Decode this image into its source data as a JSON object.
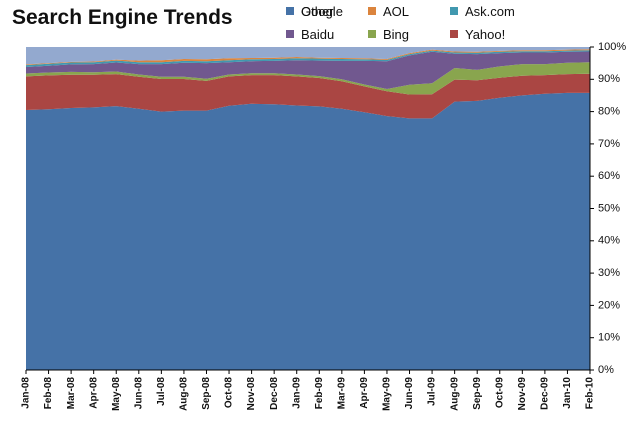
{
  "chart_data": {
    "type": "area",
    "stacked": true,
    "percent": true,
    "title": "Search Engine Trends",
    "x": [
      "Jan-08",
      "Feb-08",
      "Mar-08",
      "Apr-08",
      "May-08",
      "Jun-08",
      "Jul-08",
      "Aug-08",
      "Sep-08",
      "Oct-08",
      "Nov-08",
      "Dec-08",
      "Jan-09",
      "Feb-09",
      "Mar-09",
      "Apr-09",
      "May-09",
      "Jun-09",
      "Jul-09",
      "Aug-09",
      "Sep-09",
      "Oct-09",
      "Nov-09",
      "Dec-09",
      "Jan-10",
      "Feb-10"
    ],
    "series": [
      {
        "name": "Google",
        "color": "#4572A7",
        "values": [
          80.5,
          80.7,
          81.1,
          81.3,
          81.7,
          80.9,
          80.0,
          80.3,
          80.3,
          81.8,
          82.4,
          82.3,
          81.9,
          81.6,
          80.9,
          79.8,
          78.6,
          77.9,
          77.9,
          83.1,
          83.3,
          84.3,
          85.0,
          85.5,
          85.8,
          85.8
        ]
      },
      {
        "name": "Yahoo!",
        "color": "#AA4643",
        "values": [
          10.4,
          10.5,
          10.3,
          10.1,
          9.9,
          9.9,
          10.1,
          9.8,
          9.2,
          9.1,
          8.9,
          9.0,
          9.0,
          8.8,
          8.5,
          8.0,
          7.7,
          7.4,
          7.5,
          6.8,
          6.4,
          6.2,
          6.1,
          5.8,
          5.8,
          5.9
        ]
      },
      {
        "name": "Bing",
        "color": "#89A54E",
        "values": [
          0.9,
          0.9,
          0.9,
          0.8,
          0.8,
          0.7,
          0.7,
          0.7,
          0.7,
          0.6,
          0.6,
          0.6,
          0.6,
          0.6,
          0.6,
          0.6,
          0.7,
          3.0,
          3.4,
          3.6,
          3.2,
          3.5,
          3.6,
          3.4,
          3.5,
          3.6
        ]
      },
      {
        "name": "Baidu",
        "color": "#71588F",
        "values": [
          2.0,
          2.1,
          2.3,
          2.5,
          2.8,
          3.2,
          3.9,
          4.3,
          4.8,
          3.8,
          3.7,
          3.8,
          4.4,
          4.8,
          5.7,
          7.3,
          8.6,
          9.1,
          9.7,
          4.4,
          4.9,
          4.1,
          3.6,
          3.6,
          3.4,
          3.3
        ]
      },
      {
        "name": "Ask.com",
        "color": "#4198AF",
        "values": [
          0.6,
          0.6,
          0.6,
          0.6,
          0.6,
          0.6,
          0.6,
          0.6,
          0.6,
          0.6,
          0.6,
          0.6,
          0.6,
          0.6,
          0.6,
          0.5,
          0.4,
          0.4,
          0.4,
          0.4,
          0.4,
          0.4,
          0.4,
          0.4,
          0.4,
          0.4
        ]
      },
      {
        "name": "AOL",
        "color": "#DB843D",
        "values": [
          0.2,
          0.2,
          0.2,
          0.2,
          0.3,
          0.5,
          0.6,
          0.6,
          0.6,
          0.6,
          0.4,
          0.4,
          0.4,
          0.3,
          0.3,
          0.3,
          0.3,
          0.3,
          0.3,
          0.3,
          0.3,
          0.3,
          0.3,
          0.3,
          0.3,
          0.3
        ]
      },
      {
        "name": "Other",
        "color": "#93A9CF",
        "values": [
          5.4,
          5.0,
          4.6,
          4.5,
          3.9,
          4.2,
          4.1,
          3.7,
          3.8,
          3.5,
          3.4,
          3.3,
          3.1,
          3.3,
          3.4,
          3.5,
          3.7,
          1.9,
          0.8,
          1.4,
          1.5,
          1.2,
          1.0,
          1.0,
          0.8,
          0.7
        ]
      }
    ],
    "legend_order": [
      "Other",
      "AOL",
      "Ask.com",
      "Baidu",
      "Bing",
      "Yahoo!",
      "Google"
    ],
    "yticks": [
      "0%",
      "10%",
      "20%",
      "30%",
      "40%",
      "50%",
      "60%",
      "70%",
      "80%",
      "90%",
      "100%"
    ],
    "ylim": [
      0,
      100
    ],
    "grid": false,
    "legend_position": "top-right",
    "xlabel": "",
    "ylabel": ""
  }
}
